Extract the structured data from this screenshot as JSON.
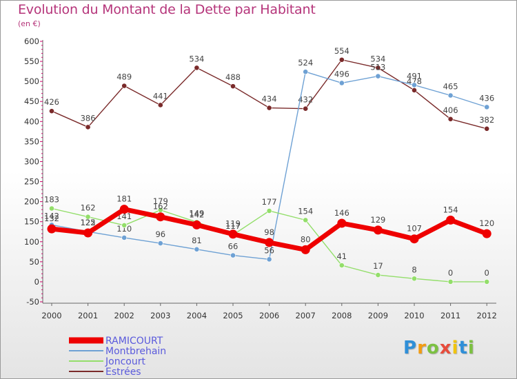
{
  "header": {
    "title": "Evolution du Montant de la Dette par Habitant",
    "subtitle": "(en €)"
  },
  "logo": {
    "letters": [
      "P",
      "r",
      "o",
      "x",
      "i",
      "t",
      "i"
    ],
    "colors": [
      "#2f8fd8",
      "#f39c12",
      "#7cc142",
      "#e74c3c",
      "#f1c40f",
      "#2f8fd8",
      "#7cc142"
    ]
  },
  "chart_data": {
    "type": "line",
    "title": "Evolution du Montant de la Dette par Habitant",
    "ylabel": "(en €)",
    "xlabel": "",
    "ylim": [
      -50,
      600
    ],
    "yticks": [
      -50,
      0,
      50,
      100,
      150,
      200,
      250,
      300,
      350,
      400,
      450,
      500,
      550,
      600
    ],
    "categories": [
      "2000",
      "2001",
      "2002",
      "2003",
      "2004",
      "2005",
      "2006",
      "2007",
      "2008",
      "2009",
      "2010",
      "2011",
      "2012"
    ],
    "grid": false,
    "legend_position": "bottom-left",
    "series": [
      {
        "name": "RAMICOURT",
        "color": "#ee0000",
        "values": [
          132,
          122,
          181,
          162,
          142,
          119,
          98,
          80,
          146,
          129,
          107,
          154,
          120
        ],
        "labels": [
          "132",
          "122",
          "181",
          "162",
          "142",
          "119",
          "98",
          "80",
          "146",
          "129",
          "107",
          "154",
          "120"
        ]
      },
      {
        "name": "Montbrehain",
        "color": "#6ea1d4",
        "values": [
          142,
          125,
          110,
          96,
          81,
          66,
          56,
          524,
          496,
          513,
          491,
          465,
          436
        ],
        "labels": [
          "142",
          "125",
          "110",
          "96",
          "81",
          "66",
          "56",
          "524",
          "496",
          "513",
          "491",
          "465",
          "436"
        ]
      },
      {
        "name": "Joncourt",
        "color": "#93de6a",
        "values": [
          183,
          162,
          141,
          179,
          149,
          117,
          177,
          154,
          41,
          17,
          8,
          0,
          0
        ],
        "labels": [
          "183",
          "162",
          "141",
          "179",
          "149",
          "117",
          "177",
          "154",
          "41",
          "17",
          "8",
          "0",
          "0"
        ]
      },
      {
        "name": "Estrées",
        "color": "#7a2a2a",
        "values": [
          426,
          386,
          489,
          441,
          534,
          488,
          434,
          432,
          554,
          534,
          478,
          406,
          382
        ],
        "labels": [
          "426",
          "386",
          "489",
          "441",
          "534",
          "488",
          "434",
          "432",
          "554",
          "534",
          "478",
          "406",
          "382"
        ]
      }
    ]
  }
}
